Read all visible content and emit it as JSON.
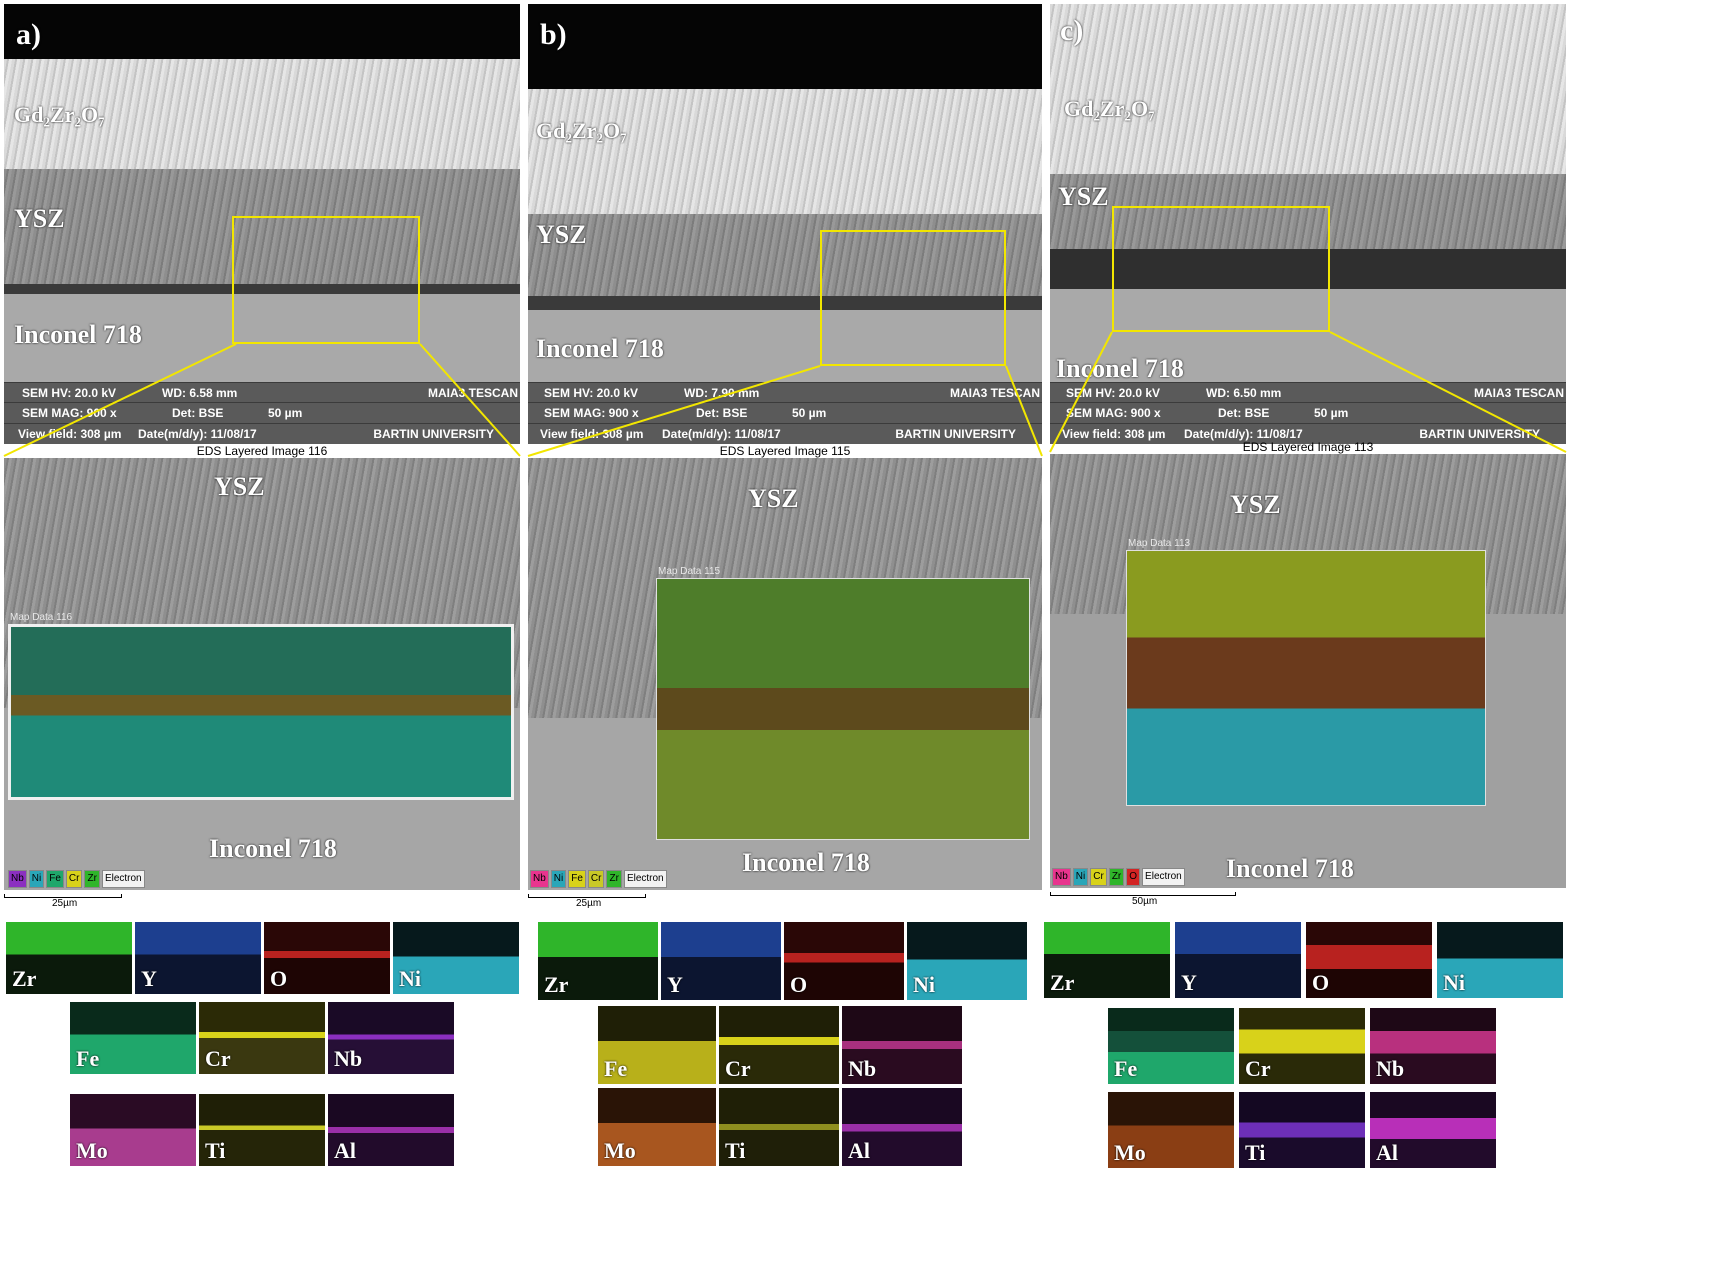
{
  "panels": [
    {
      "letter": "a)",
      "top_label": "Gd₂Zr₂O₇",
      "ysz": "YSZ",
      "inconel": "Inconel 718",
      "info": {
        "hv": "SEM HV: 20.0 kV",
        "wd": "WD: 6.58 mm",
        "brand": "MAIA3 TESCAN",
        "mag": "SEM MAG: 900 x",
        "det": "Det: BSE",
        "scale": "50 µm",
        "field": "View field: 308 µm",
        "date": "Date(m/d/y): 11/08/17",
        "uni": "BARTIN UNIVERSITY"
      },
      "eds_title": "EDS Layered Image 116",
      "map_title": "Map Data 116",
      "eds_ysz": "YSZ",
      "eds_inconel": "Inconel 718",
      "legend": [
        "Nb",
        "Ni",
        "Fe",
        "Cr",
        "Zr",
        "Electron"
      ],
      "scale_bar": "25µm",
      "maps": [
        "Zr",
        "Y",
        "O",
        "Ni",
        "Fe",
        "Cr",
        "Nb",
        "Mo",
        "Ti",
        "Al"
      ]
    },
    {
      "letter": "b)",
      "top_label": "Gd₂Zr₂O₇",
      "ysz": "YSZ",
      "inconel": "Inconel 718",
      "info": {
        "hv": "SEM HV: 20.0 kV",
        "wd": "WD: 7.90 mm",
        "brand": "MAIA3 TESCAN",
        "mag": "SEM MAG: 900 x",
        "det": "Det: BSE",
        "scale": "50 µm",
        "field": "View field: 308 µm",
        "date": "Date(m/d/y): 11/08/17",
        "uni": "BARTIN UNIVERSITY"
      },
      "eds_title": "EDS Layered Image 115",
      "map_title": "Map Data 115",
      "eds_ysz": "YSZ",
      "eds_inconel": "Inconel 718",
      "legend": [
        "Nb",
        "Ni",
        "Fe",
        "Cr",
        "Zr",
        "Electron"
      ],
      "scale_bar": "25µm",
      "maps": [
        "Zr",
        "Y",
        "O",
        "Ni",
        "Fe",
        "Cr",
        "Nb",
        "Mo",
        "Ti",
        "Al"
      ]
    },
    {
      "letter": "c)",
      "top_label": "Gd₂Zr₂O₇",
      "ysz": "YSZ",
      "inconel": "Inconel 718",
      "info": {
        "hv": "SEM HV: 20.0 kV",
        "wd": "WD: 6.50 mm",
        "brand": "MAIA3 TESCAN",
        "mag": "SEM MAG: 900 x",
        "det": "Det: BSE",
        "scale": "50 µm",
        "field": "View field: 308 µm",
        "date": "Date(m/d/y): 11/08/17",
        "uni": "BARTIN UNIVERSITY"
      },
      "eds_title": "EDS Layered Image 113",
      "map_title": "Map Data 113",
      "eds_ysz": "YSZ",
      "eds_inconel": "Inconel 718",
      "legend": [
        "Nb",
        "Ni",
        "Cr",
        "Zr",
        "O",
        "Electron"
      ],
      "scale_bar": "50µm",
      "maps": [
        "Zr",
        "Y",
        "O",
        "Ni",
        "Fe",
        "Cr",
        "Nb",
        "Mo",
        "Ti",
        "Al"
      ]
    }
  ],
  "colors": {
    "Zr": "#2fb52a",
    "Y": "#1d3f8f",
    "O": "#b8221f",
    "Ni": "#2aa6b8",
    "Fe": "#1fa76b",
    "Cr": "#d8d21a",
    "Nb": "#8b2fc0",
    "Mo": "#a83c8e",
    "Ti": "#c9c927",
    "Al": "#9a2fa8",
    "selection": "#f2e600"
  }
}
